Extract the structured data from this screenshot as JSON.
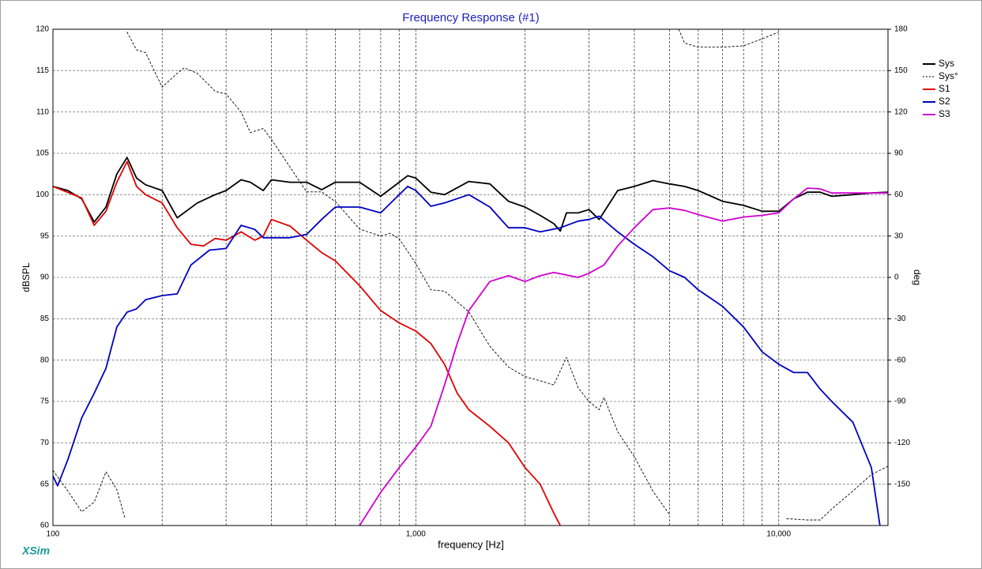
{
  "chart_data": {
    "type": "line",
    "title": "Frequency Response (#1)",
    "x_label": "frequency [Hz]",
    "y_label": "dBSPL",
    "y2_label": "deg",
    "watermark": "XSim",
    "log_x": true,
    "grid": true,
    "legend": "top-right",
    "xlim": [
      100,
      20000
    ],
    "xticks": [
      {
        "value": 100,
        "label": "100"
      },
      {
        "value": 1000,
        "label": "1,000"
      },
      {
        "value": 10000,
        "label": "10,000"
      }
    ],
    "xminor": [
      200,
      300,
      400,
      500,
      600,
      700,
      800,
      900,
      2000,
      3000,
      4000,
      5000,
      6000,
      7000,
      8000,
      9000
    ],
    "ylim": [
      60,
      120
    ],
    "yticks": [
      60,
      65,
      70,
      75,
      80,
      85,
      90,
      95,
      100,
      105,
      110,
      115,
      120
    ],
    "y2lim": [
      -180,
      180
    ],
    "y2ticks": [
      -150,
      -120,
      -90,
      -60,
      -30,
      0,
      30,
      60,
      90,
      120,
      150,
      180
    ],
    "series": [
      {
        "name": "Sys",
        "color": "#000000",
        "x": [
          100,
          110,
          120,
          130,
          140,
          150,
          160,
          170,
          180,
          200,
          220,
          250,
          280,
          300,
          330,
          350,
          380,
          400,
          450,
          500,
          550,
          600,
          700,
          800,
          900,
          950,
          1000,
          1100,
          1200,
          1400,
          1600,
          1800,
          2000,
          2200,
          2400,
          2500,
          2600,
          2800,
          3000,
          3200,
          3600,
          4000,
          4500,
          5000,
          5500,
          6000,
          7000,
          8000,
          9000,
          10000,
          11000,
          12000,
          13000,
          14000,
          16000,
          18000,
          20000
        ],
        "values": [
          101,
          100.5,
          99.5,
          96.7,
          98.5,
          102.5,
          104.5,
          102,
          101.2,
          100.5,
          97.2,
          99,
          100,
          100.5,
          101.8,
          101.5,
          100.5,
          101.8,
          101.5,
          101.5,
          100.6,
          101.5,
          101.5,
          99.8,
          101.5,
          102.3,
          102,
          100.3,
          100,
          101.6,
          101.3,
          99.2,
          98.5,
          97.5,
          96.5,
          95.6,
          97.8,
          97.8,
          98.2,
          97,
          100.5,
          101,
          101.7,
          101.3,
          101,
          100.5,
          99.2,
          98.7,
          98,
          98,
          99.5,
          100.3,
          100.3,
          99.8,
          100,
          100.2,
          100.3
        ]
      },
      {
        "name": "Sys°",
        "color": "#000000",
        "dash": true,
        "axis": "y2",
        "x": [
          100,
          110,
          120,
          130,
          140,
          150,
          158,
          160,
          160,
          170,
          180,
          200,
          220,
          230,
          250,
          280,
          300,
          330,
          350,
          380,
          400,
          450,
          500,
          550,
          600,
          700,
          800,
          850,
          900,
          1000,
          1100,
          1200,
          1400,
          1600,
          1800,
          2000,
          2200,
          2400,
          2600,
          2800,
          3000,
          3200,
          3300,
          3600,
          4000,
          4500,
          5000,
          5300,
          5300,
          5500,
          6000,
          7000,
          8000,
          9000,
          10000,
          10000,
          10500,
          12000,
          13000,
          14000,
          16000,
          18000,
          20000
        ],
        "values": [
          -140,
          -155,
          -170,
          -163,
          -141,
          -154,
          -175,
          null,
          178,
          165,
          163,
          138,
          148,
          152,
          148,
          135,
          133,
          120,
          105,
          108,
          100,
          80,
          62,
          62,
          55,
          35,
          30,
          32,
          28,
          10,
          -9,
          -10,
          -25,
          -50,
          -65,
          -72,
          -75,
          -78,
          -58,
          -80,
          -90,
          -96,
          -87,
          -112,
          -130,
          -155,
          -172,
          null,
          180,
          170,
          167,
          167,
          168,
          173,
          178,
          null,
          -175,
          -176,
          -176,
          -168,
          -155,
          -143,
          -137
        ]
      },
      {
        "name": "S1",
        "color": "#e00000",
        "x": [
          100,
          120,
          130,
          140,
          150,
          160,
          170,
          180,
          200,
          220,
          240,
          260,
          280,
          300,
          330,
          360,
          380,
          400,
          450,
          500,
          550,
          600,
          700,
          800,
          900,
          1000,
          1100,
          1200,
          1300,
          1400,
          1600,
          1800,
          2000,
          2200,
          2400,
          2500
        ],
        "values": [
          101,
          99.6,
          96.3,
          98,
          101.5,
          104,
          101,
          100,
          99,
          96,
          94,
          93.8,
          94.7,
          94.5,
          95.5,
          94.5,
          95,
          97,
          96.2,
          94.5,
          93,
          92,
          89,
          86,
          84.5,
          83.5,
          82,
          79.5,
          76,
          74,
          72,
          70,
          67,
          65,
          61.5,
          60
        ]
      },
      {
        "name": "S2",
        "color": "#0000c0",
        "x": [
          100,
          103,
          110,
          120,
          130,
          140,
          150,
          160,
          170,
          180,
          200,
          220,
          240,
          270,
          300,
          330,
          360,
          380,
          420,
          450,
          500,
          550,
          600,
          700,
          800,
          900,
          950,
          1000,
          1100,
          1200,
          1400,
          1600,
          1800,
          2000,
          2200,
          2500,
          2800,
          3000,
          3200,
          3600,
          4000,
          4500,
          5000,
          5500,
          6000,
          7000,
          8000,
          9000,
          10000,
          11000,
          12000,
          13000,
          14000,
          16000,
          18000,
          19000
        ],
        "values": [
          66,
          64.8,
          68,
          73,
          76,
          79,
          84,
          85.8,
          86.2,
          87.3,
          87.8,
          88,
          91.5,
          93.3,
          93.5,
          96.3,
          95.8,
          94.8,
          94.8,
          94.8,
          95.2,
          97,
          98.5,
          98.5,
          97.8,
          100,
          101,
          100.5,
          98.6,
          99,
          100,
          98.5,
          96,
          96,
          95.5,
          96,
          96.8,
          97,
          97.4,
          95.5,
          94,
          92.5,
          90.8,
          90,
          88.5,
          86.5,
          84,
          81,
          79.5,
          78.5,
          78.5,
          76.5,
          75,
          72.5,
          67,
          60
        ]
      },
      {
        "name": "S3",
        "color": "#d000d0",
        "x": [
          700,
          800,
          900,
          1000,
          1100,
          1200,
          1300,
          1400,
          1600,
          1800,
          2000,
          2200,
          2400,
          2800,
          3000,
          3300,
          3600,
          4000,
          4500,
          5000,
          5500,
          6000,
          7000,
          8000,
          9000,
          10000,
          11000,
          12000,
          13000,
          14000,
          16000,
          18000,
          20000
        ],
        "values": [
          60,
          64,
          67,
          69.5,
          72,
          77,
          82,
          86,
          89.5,
          90.2,
          89.5,
          90.2,
          90.6,
          90,
          90.5,
          91.5,
          93.8,
          96,
          98.2,
          98.4,
          98.1,
          97.6,
          96.8,
          97.3,
          97.5,
          97.8,
          99.5,
          100.8,
          100.7,
          100.2,
          100.2,
          100.2,
          100.2
        ]
      }
    ]
  }
}
